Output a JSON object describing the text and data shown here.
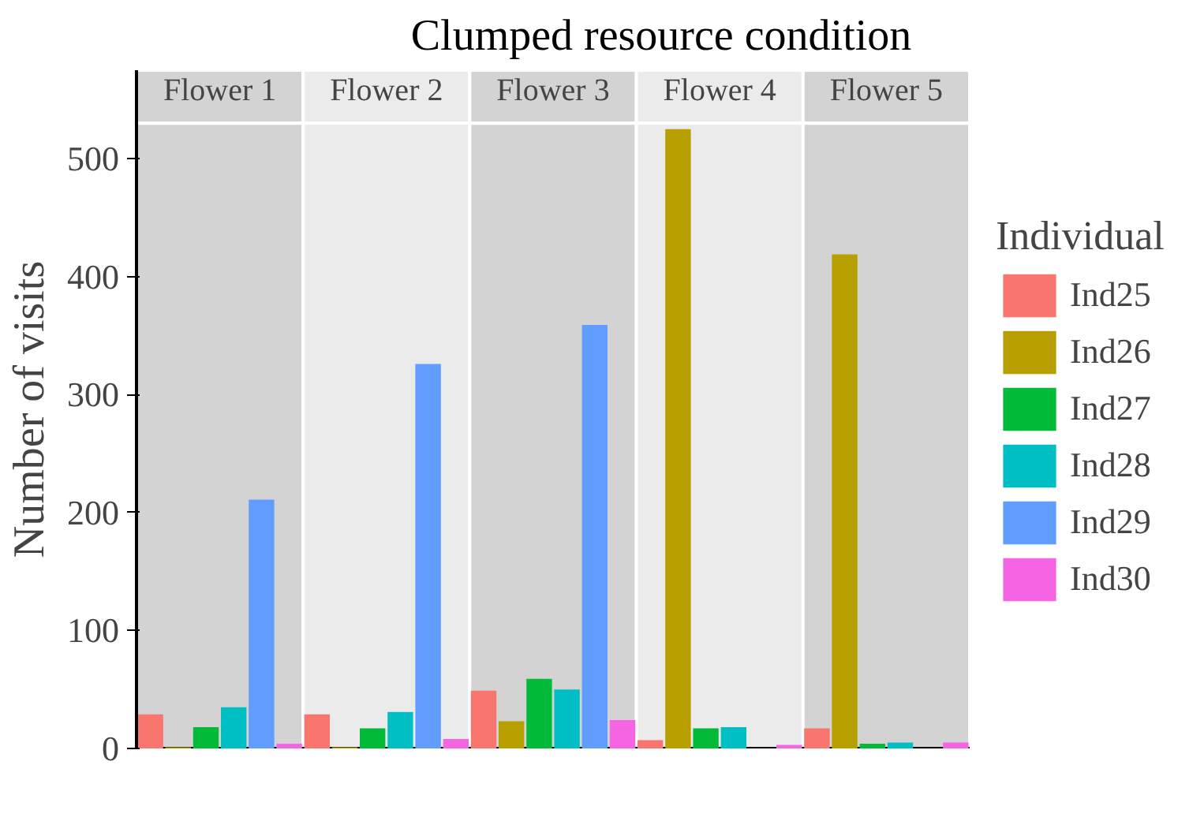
{
  "chart_data": {
    "type": "bar",
    "title": "Clumped resource condition",
    "ylabel": "Number of visits",
    "legend_title": "Individual",
    "categories": [
      "Flower 1",
      "Flower 2",
      "Flower 3",
      "Flower 4",
      "Flower 5"
    ],
    "series": [
      {
        "name": "Ind25",
        "color": "#f8766d",
        "values": [
          29,
          29,
          49,
          7,
          17
        ]
      },
      {
        "name": "Ind26",
        "color": "#b79f00",
        "values": [
          1,
          1,
          23,
          525,
          419
        ]
      },
      {
        "name": "Ind27",
        "color": "#00ba38",
        "values": [
          18,
          17,
          59,
          17,
          4
        ]
      },
      {
        "name": "Ind28",
        "color": "#00bfc4",
        "values": [
          35,
          31,
          50,
          18,
          5
        ]
      },
      {
        "name": "Ind29",
        "color": "#619cff",
        "values": [
          211,
          326,
          359,
          0,
          0
        ]
      },
      {
        "name": "Ind30",
        "color": "#f564e3",
        "values": [
          4,
          8,
          24,
          3,
          5
        ]
      }
    ],
    "ylim": [
      0,
      530
    ],
    "yticks": [
      0,
      100,
      200,
      300,
      400,
      500
    ],
    "grid": false,
    "legend": "right"
  }
}
